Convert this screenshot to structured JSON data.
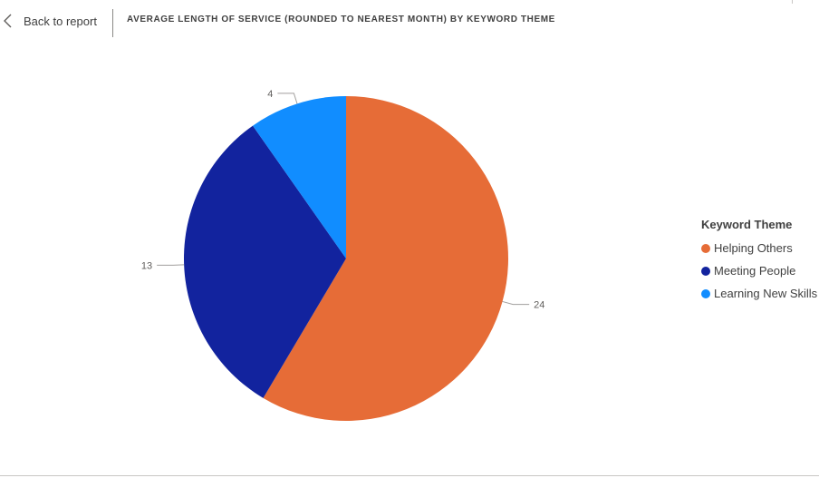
{
  "header": {
    "back_label": "Back to report",
    "title": "AVERAGE LENGTH OF SERVICE (ROUNDED TO NEAREST MONTH) BY KEYWORD THEME"
  },
  "chart_data": {
    "type": "pie",
    "title": "AVERAGE LENGTH OF SERVICE (ROUNDED TO NEAREST MONTH) BY KEYWORD THEME",
    "legend_title": "Keyword Theme",
    "legend_position": "right",
    "categories": [
      "Helping Others",
      "Meeting People",
      "Learning New Skills"
    ],
    "values": [
      24,
      13,
      4
    ],
    "data_labels": [
      "24",
      "13",
      "4"
    ],
    "colors": [
      "#E66C37",
      "#12239E",
      "#118DFF"
    ]
  }
}
